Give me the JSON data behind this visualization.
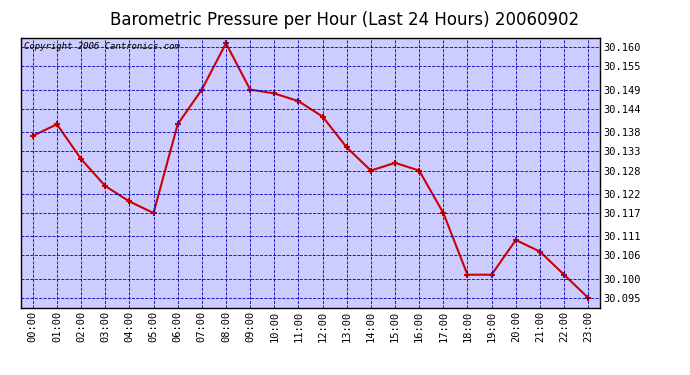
{
  "title": "Barometric Pressure per Hour (Last 24 Hours) 20060902",
  "copyright": "Copyright 2006 Cantronics.com",
  "hours": [
    0,
    1,
    2,
    3,
    4,
    5,
    6,
    7,
    8,
    9,
    10,
    11,
    12,
    13,
    14,
    15,
    16,
    17,
    18,
    19,
    20,
    21,
    22,
    23
  ],
  "hour_labels": [
    "00:00",
    "01:00",
    "02:00",
    "03:00",
    "04:00",
    "05:00",
    "06:00",
    "07:00",
    "08:00",
    "09:00",
    "10:00",
    "11:00",
    "12:00",
    "13:00",
    "14:00",
    "15:00",
    "16:00",
    "17:00",
    "18:00",
    "19:00",
    "20:00",
    "21:00",
    "22:00",
    "23:00"
  ],
  "pressure": [
    30.137,
    30.14,
    30.131,
    30.124,
    30.12,
    30.117,
    30.14,
    30.149,
    30.161,
    30.149,
    30.148,
    30.146,
    30.142,
    30.134,
    30.128,
    30.13,
    30.128,
    30.117,
    30.101,
    30.101,
    30.11,
    30.107,
    30.101,
    30.095
  ],
  "ylim_min": 30.0925,
  "ylim_max": 30.1625,
  "yticks": [
    30.095,
    30.1,
    30.106,
    30.111,
    30.117,
    30.122,
    30.128,
    30.133,
    30.138,
    30.144,
    30.149,
    30.155,
    30.16
  ],
  "line_color": "#cc0000",
  "marker": "+",
  "marker_size": 5,
  "marker_linewidth": 1.5,
  "line_width": 1.5,
  "plot_bg_color": "#ccccff",
  "fig_bg_color": "#ffffff",
  "grid_color": "#0000bb",
  "grid_linestyle": "--",
  "grid_linewidth": 0.6,
  "title_fontsize": 12,
  "copyright_fontsize": 6.5,
  "tick_fontsize": 7.5,
  "border_color": "#000000"
}
